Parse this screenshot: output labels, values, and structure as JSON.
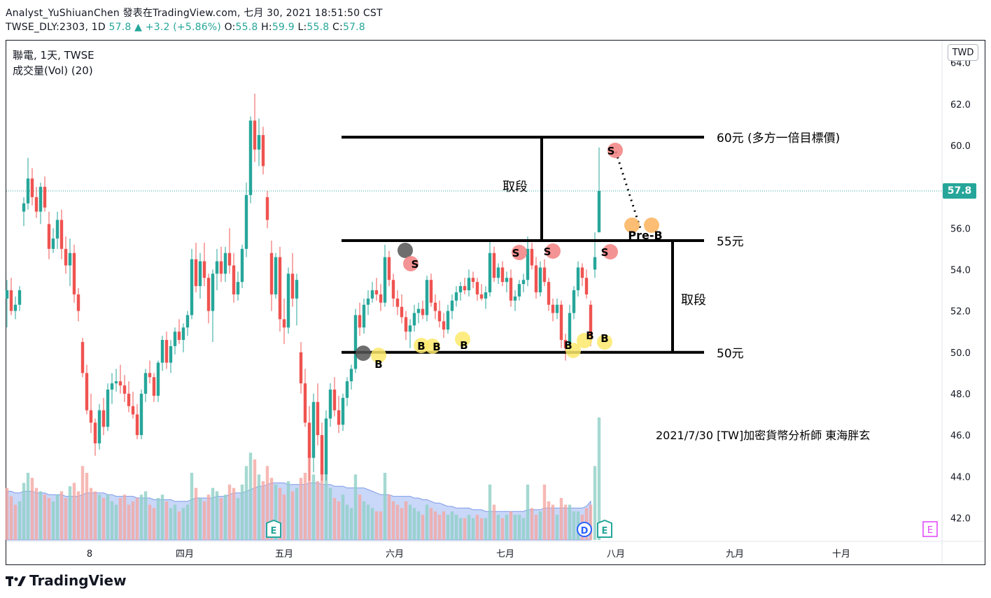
{
  "header": {
    "publish_line": "Analyst_YuShiuanChen 發表在TradingView.com, 七月 30, 2021 18:51:50 CST",
    "ticker": "TWSE_DLY:2303, 1D",
    "last": "57.8",
    "change": "+3.2 (+5.86%)",
    "o_label": "O:",
    "o": "55.8",
    "h_label": "H:",
    "h": "59.9",
    "l_label": "L:",
    "l": "55.8",
    "c_label": "C:",
    "c": "57.8"
  },
  "legend": {
    "line1": "聯電, 1天, TWSE",
    "line2": "成交量(Vol) (20)"
  },
  "currency_button": "TWD",
  "price_tag": "57.8",
  "footer": {
    "brand": "TradingView"
  },
  "colors": {
    "up": "#26a69a",
    "down": "#ef5350",
    "vol_up": "#8fcfc6",
    "vol_down": "#f4a7a3",
    "vol_ma_fill": "#b7c9f5",
    "marker_buy": "#fde96b",
    "marker_sell": "#f28080",
    "marker_dark": "#555555",
    "marker_preb": "#fbb35c",
    "event_e": "#26a69a",
    "event_d": "#2962ff",
    "event_e_future": "#e040fb"
  },
  "chart_data": {
    "type": "candlestick",
    "title": "聯電, 1天, TWSE",
    "ylim": [
      41,
      65
    ],
    "yticks": [
      42.0,
      44.0,
      46.0,
      48.0,
      50.0,
      52.0,
      54.0,
      56.0,
      58.0,
      60.0,
      62.0,
      64.0
    ],
    "xticks": [
      "8",
      "四月",
      "五月",
      "六月",
      "七月",
      "八月",
      "九月",
      "十月"
    ],
    "current_price": 57.8,
    "candles": [
      [
        52.6,
        53.5,
        51.2,
        53.0
      ],
      [
        53.0,
        53.6,
        51.8,
        52.0
      ],
      [
        52.0,
        52.7,
        51.6,
        52.3
      ],
      [
        52.3,
        53.2,
        52.0,
        53.0
      ],
      [
        56.8,
        57.5,
        56.1,
        57.2
      ],
      [
        57.2,
        59.4,
        56.9,
        58.4
      ],
      [
        58.4,
        58.9,
        57.1,
        57.5
      ],
      [
        57.5,
        58.0,
        56.5,
        56.8
      ],
      [
        56.8,
        58.2,
        56.2,
        58.0
      ],
      [
        58.0,
        58.5,
        56.8,
        57.0
      ],
      [
        56.2,
        56.8,
        54.5,
        55.0
      ],
      [
        55.0,
        56.0,
        54.8,
        55.5
      ],
      [
        55.5,
        56.8,
        55.0,
        56.4
      ],
      [
        56.4,
        56.9,
        54.5,
        55.0
      ],
      [
        55.0,
        55.6,
        53.8,
        54.2
      ],
      [
        54.2,
        55.5,
        53.2,
        54.8
      ],
      [
        54.8,
        55.2,
        52.4,
        52.8
      ],
      [
        52.8,
        53.1,
        51.5,
        52.0
      ],
      [
        50.5,
        50.7,
        48.8,
        49.0
      ],
      [
        49.0,
        49.4,
        47.0,
        47.2
      ],
      [
        47.2,
        48.0,
        46.1,
        46.6
      ],
      [
        46.6,
        46.8,
        45.0,
        45.6
      ],
      [
        45.6,
        47.5,
        45.3,
        47.2
      ],
      [
        47.2,
        47.8,
        46.0,
        46.4
      ],
      [
        46.4,
        48.5,
        46.2,
        48.2
      ],
      [
        48.2,
        49.0,
        47.5,
        48.5
      ],
      [
        48.5,
        49.2,
        48.1,
        48.6
      ],
      [
        48.6,
        49.4,
        48.0,
        48.4
      ],
      [
        48.4,
        48.9,
        47.6,
        48.0
      ],
      [
        48.0,
        48.6,
        47.1,
        47.4
      ],
      [
        47.4,
        48.1,
        46.8,
        47.0
      ],
      [
        47.0,
        47.5,
        45.8,
        46.0
      ],
      [
        46.0,
        48.2,
        45.8,
        48.0
      ],
      [
        48.0,
        49.2,
        47.6,
        49.0
      ],
      [
        49.0,
        49.6,
        48.5,
        48.8
      ],
      [
        48.8,
        49.0,
        47.6,
        47.9
      ],
      [
        47.9,
        49.6,
        47.6,
        49.5
      ],
      [
        49.5,
        50.8,
        49.1,
        50.6
      ],
      [
        50.6,
        51.0,
        49.2,
        49.5
      ],
      [
        49.5,
        50.6,
        49.0,
        50.3
      ],
      [
        50.3,
        51.2,
        49.9,
        51.0
      ],
      [
        51.0,
        51.6,
        50.4,
        50.6
      ],
      [
        50.6,
        51.4,
        50.0,
        51.2
      ],
      [
        51.2,
        52.0,
        50.8,
        51.8
      ],
      [
        51.8,
        55.0,
        51.6,
        54.5
      ],
      [
        54.5,
        55.3,
        52.9,
        53.2
      ],
      [
        53.2,
        54.8,
        52.6,
        54.4
      ],
      [
        54.4,
        55.3,
        53.2,
        53.6
      ],
      [
        53.6,
        53.8,
        51.4,
        52.0
      ],
      [
        52.0,
        54.0,
        50.5,
        53.8
      ],
      [
        53.8,
        55.0,
        53.0,
        54.4
      ],
      [
        54.4,
        55.1,
        53.4,
        53.8
      ],
      [
        53.8,
        55.1,
        53.4,
        54.8
      ],
      [
        54.8,
        56.0,
        53.8,
        54.2
      ],
      [
        54.2,
        54.8,
        52.4,
        52.8
      ],
      [
        52.8,
        53.9,
        52.5,
        53.4
      ],
      [
        53.4,
        55.2,
        53.1,
        55.0
      ],
      [
        55.0,
        58.2,
        54.6,
        57.6
      ],
      [
        57.6,
        61.4,
        57.2,
        61.2
      ],
      [
        61.2,
        62.5,
        59.2,
        59.8
      ],
      [
        59.8,
        61.3,
        59.0,
        60.5
      ],
      [
        60.5,
        60.9,
        58.6,
        59.0
      ],
      [
        57.5,
        57.8,
        56.0,
        56.4
      ],
      [
        54.8,
        55.4,
        52.0,
        52.8
      ],
      [
        52.8,
        54.8,
        52.6,
        54.6
      ],
      [
        54.6,
        55.1,
        51.0,
        51.6
      ],
      [
        51.6,
        52.6,
        50.4,
        51.2
      ],
      [
        51.2,
        54.1,
        50.9,
        53.8
      ],
      [
        53.8,
        54.8,
        52.2,
        52.6
      ],
      [
        52.6,
        53.8,
        51.3,
        53.5
      ],
      [
        50.0,
        50.5,
        48.0,
        48.5
      ],
      [
        48.5,
        49.2,
        46.4,
        46.6
      ],
      [
        46.6,
        47.4,
        43.8,
        44.9
      ],
      [
        44.9,
        48.0,
        44.2,
        47.6
      ],
      [
        47.6,
        48.5,
        45.5,
        46.0
      ],
      [
        46.0,
        46.6,
        43.8,
        44.1
      ],
      [
        44.1,
        47.2,
        43.8,
        46.8
      ],
      [
        46.8,
        48.5,
        46.4,
        48.2
      ],
      [
        48.2,
        48.8,
        46.9,
        47.2
      ],
      [
        47.2,
        47.9,
        46.1,
        46.5
      ],
      [
        46.5,
        48.0,
        46.2,
        47.8
      ],
      [
        47.8,
        48.8,
        47.4,
        48.6
      ],
      [
        48.6,
        49.4,
        48.2,
        49.2
      ],
      [
        49.2,
        52.1,
        49.0,
        51.8
      ],
      [
        51.8,
        52.4,
        50.8,
        51.2
      ],
      [
        51.2,
        52.6,
        50.9,
        52.3
      ],
      [
        52.3,
        53.0,
        51.8,
        52.6
      ],
      [
        52.6,
        53.4,
        52.4,
        53.0
      ],
      [
        53.0,
        53.6,
        52.5,
        52.8
      ],
      [
        52.8,
        53.3,
        52.0,
        52.4
      ],
      [
        52.4,
        55.2,
        52.2,
        54.6
      ],
      [
        54.6,
        54.9,
        53.2,
        53.5
      ],
      [
        53.5,
        53.8,
        52.2,
        52.6
      ],
      [
        52.6,
        53.0,
        51.8,
        52.2
      ],
      [
        52.2,
        52.8,
        51.4,
        51.7
      ],
      [
        51.7,
        52.0,
        50.6,
        51.0
      ],
      [
        51.0,
        51.6,
        50.2,
        51.3
      ],
      [
        51.3,
        52.3,
        51.0,
        51.9
      ],
      [
        51.9,
        52.4,
        51.4,
        52.1
      ],
      [
        52.1,
        52.5,
        51.6,
        51.8
      ],
      [
        51.8,
        53.7,
        51.5,
        53.5
      ],
      [
        53.5,
        53.8,
        52.2,
        52.4
      ],
      [
        52.4,
        52.8,
        51.6,
        52.0
      ],
      [
        52.0,
        52.5,
        51.2,
        51.5
      ],
      [
        51.5,
        51.9,
        50.7,
        51.1
      ],
      [
        51.1,
        52.3,
        50.9,
        52.0
      ],
      [
        52.0,
        52.8,
        51.6,
        52.5
      ],
      [
        52.5,
        53.2,
        52.2,
        52.9
      ],
      [
        52.9,
        53.4,
        52.5,
        53.2
      ],
      [
        53.2,
        53.6,
        52.8,
        53.0
      ],
      [
        53.0,
        54.0,
        52.7,
        53.6
      ],
      [
        53.6,
        53.9,
        53.1,
        53.4
      ],
      [
        53.4,
        53.6,
        52.5,
        52.8
      ],
      [
        52.8,
        53.3,
        52.5,
        52.6
      ],
      [
        52.6,
        53.2,
        52.1,
        52.9
      ],
      [
        52.9,
        55.4,
        52.7,
        54.8
      ],
      [
        54.8,
        55.1,
        53.4,
        53.6
      ],
      [
        53.6,
        54.3,
        53.3,
        54.1
      ],
      [
        54.1,
        54.4,
        53.2,
        53.4
      ],
      [
        53.4,
        53.9,
        52.9,
        53.6
      ],
      [
        53.6,
        54.0,
        52.2,
        52.5
      ],
      [
        52.5,
        53.0,
        52.0,
        52.7
      ],
      [
        52.7,
        53.5,
        52.5,
        53.3
      ],
      [
        53.3,
        53.8,
        52.9,
        53.5
      ],
      [
        53.5,
        55.6,
        53.2,
        55.0
      ],
      [
        55.0,
        55.3,
        54.0,
        54.2
      ],
      [
        54.2,
        54.6,
        52.6,
        52.9
      ],
      [
        52.9,
        54.4,
        52.7,
        54.1
      ],
      [
        54.1,
        54.5,
        53.2,
        53.4
      ],
      [
        53.4,
        53.6,
        52.0,
        52.3
      ],
      [
        52.3,
        52.6,
        51.5,
        51.9
      ],
      [
        51.9,
        52.6,
        51.6,
        52.3
      ],
      [
        52.3,
        52.5,
        50.2,
        50.6
      ],
      [
        50.6,
        50.9,
        49.6,
        50.2
      ],
      [
        50.2,
        52.3,
        49.9,
        51.9
      ],
      [
        51.9,
        53.2,
        51.6,
        53.0
      ],
      [
        53.0,
        54.4,
        52.7,
        54.1
      ],
      [
        54.1,
        54.3,
        53.2,
        53.6
      ],
      [
        53.6,
        54.0,
        52.6,
        52.8
      ],
      [
        52.3,
        52.5,
        50.3,
        50.6
      ],
      [
        54.0,
        55.8,
        53.6,
        54.6
      ],
      [
        55.8,
        59.9,
        55.8,
        57.8
      ]
    ],
    "volume": [
      [
        3.1,
        "d"
      ],
      [
        2.6,
        "d"
      ],
      [
        2.1,
        "d"
      ],
      [
        2.3,
        "u"
      ],
      [
        3.4,
        "u"
      ],
      [
        4.0,
        "u"
      ],
      [
        3.7,
        "d"
      ],
      [
        3.1,
        "d"
      ],
      [
        2.9,
        "u"
      ],
      [
        2.7,
        "d"
      ],
      [
        2.5,
        "d"
      ],
      [
        2.3,
        "u"
      ],
      [
        2.7,
        "u"
      ],
      [
        2.9,
        "d"
      ],
      [
        2.5,
        "d"
      ],
      [
        3.2,
        "u"
      ],
      [
        3.4,
        "d"
      ],
      [
        2.9,
        "d"
      ],
      [
        4.4,
        "d"
      ],
      [
        4.0,
        "d"
      ],
      [
        3.1,
        "d"
      ],
      [
        2.9,
        "d"
      ],
      [
        2.7,
        "u"
      ],
      [
        2.5,
        "d"
      ],
      [
        2.7,
        "u"
      ],
      [
        2.3,
        "u"
      ],
      [
        2.1,
        "u"
      ],
      [
        2.5,
        "d"
      ],
      [
        2.7,
        "d"
      ],
      [
        2.1,
        "d"
      ],
      [
        2.3,
        "d"
      ],
      [
        2.5,
        "d"
      ],
      [
        2.7,
        "u"
      ],
      [
        2.9,
        "u"
      ],
      [
        2.1,
        "d"
      ],
      [
        1.9,
        "d"
      ],
      [
        2.5,
        "u"
      ],
      [
        2.7,
        "u"
      ],
      [
        2.3,
        "d"
      ],
      [
        1.9,
        "u"
      ],
      [
        2.1,
        "u"
      ],
      [
        1.7,
        "d"
      ],
      [
        1.9,
        "u"
      ],
      [
        2.1,
        "u"
      ],
      [
        4.0,
        "u"
      ],
      [
        3.1,
        "d"
      ],
      [
        2.5,
        "u"
      ],
      [
        2.3,
        "d"
      ],
      [
        2.7,
        "d"
      ],
      [
        3.1,
        "u"
      ],
      [
        2.9,
        "u"
      ],
      [
        2.5,
        "d"
      ],
      [
        2.7,
        "u"
      ],
      [
        3.3,
        "d"
      ],
      [
        3.1,
        "d"
      ],
      [
        2.5,
        "u"
      ],
      [
        3.3,
        "u"
      ],
      [
        4.4,
        "u"
      ],
      [
        5.2,
        "u"
      ],
      [
        4.8,
        "d"
      ],
      [
        3.9,
        "u"
      ],
      [
        3.5,
        "d"
      ],
      [
        4.4,
        "d"
      ],
      [
        3.7,
        "d"
      ],
      [
        3.3,
        "u"
      ],
      [
        3.1,
        "d"
      ],
      [
        2.7,
        "d"
      ],
      [
        3.5,
        "u"
      ],
      [
        2.9,
        "d"
      ],
      [
        3.1,
        "u"
      ],
      [
        3.7,
        "d"
      ],
      [
        4.0,
        "d"
      ],
      [
        5.2,
        "d"
      ],
      [
        3.9,
        "u"
      ],
      [
        3.5,
        "d"
      ],
      [
        4.2,
        "d"
      ],
      [
        3.9,
        "u"
      ],
      [
        3.1,
        "u"
      ],
      [
        2.5,
        "d"
      ],
      [
        2.3,
        "d"
      ],
      [
        2.7,
        "u"
      ],
      [
        2.1,
        "u"
      ],
      [
        1.9,
        "u"
      ],
      [
        3.9,
        "u"
      ],
      [
        2.7,
        "d"
      ],
      [
        2.3,
        "u"
      ],
      [
        2.1,
        "u"
      ],
      [
        1.9,
        "u"
      ],
      [
        1.7,
        "d"
      ],
      [
        1.7,
        "d"
      ],
      [
        4.0,
        "u"
      ],
      [
        2.7,
        "d"
      ],
      [
        2.3,
        "d"
      ],
      [
        2.1,
        "d"
      ],
      [
        1.9,
        "d"
      ],
      [
        2.3,
        "d"
      ],
      [
        2.1,
        "u"
      ],
      [
        1.9,
        "u"
      ],
      [
        1.7,
        "u"
      ],
      [
        1.5,
        "d"
      ],
      [
        2.1,
        "u"
      ],
      [
        1.9,
        "d"
      ],
      [
        1.7,
        "d"
      ],
      [
        1.5,
        "d"
      ],
      [
        1.7,
        "d"
      ],
      [
        1.5,
        "u"
      ],
      [
        1.7,
        "u"
      ],
      [
        1.5,
        "u"
      ],
      [
        1.3,
        "u"
      ],
      [
        1.3,
        "d"
      ],
      [
        1.5,
        "u"
      ],
      [
        1.3,
        "u"
      ],
      [
        1.5,
        "d"
      ],
      [
        1.3,
        "d"
      ],
      [
        1.3,
        "u"
      ],
      [
        3.3,
        "u"
      ],
      [
        2.1,
        "d"
      ],
      [
        1.5,
        "u"
      ],
      [
        1.3,
        "d"
      ],
      [
        1.5,
        "u"
      ],
      [
        1.7,
        "d"
      ],
      [
        1.5,
        "u"
      ],
      [
        1.5,
        "u"
      ],
      [
        1.3,
        "u"
      ],
      [
        3.3,
        "u"
      ],
      [
        1.9,
        "d"
      ],
      [
        1.5,
        "d"
      ],
      [
        1.7,
        "u"
      ],
      [
        3.3,
        "d"
      ],
      [
        2.3,
        "d"
      ],
      [
        2.1,
        "d"
      ],
      [
        1.5,
        "u"
      ],
      [
        2.5,
        "d"
      ],
      [
        2.1,
        "d"
      ],
      [
        2.1,
        "u"
      ],
      [
        1.7,
        "u"
      ],
      [
        1.7,
        "u"
      ],
      [
        1.5,
        "d"
      ],
      [
        1.9,
        "d"
      ],
      [
        2.1,
        "d"
      ],
      [
        4.4,
        "u"
      ],
      [
        7.3,
        "u"
      ]
    ],
    "volume_ma_relative": [
      2.9,
      2.9,
      2.8,
      2.8,
      2.9,
      2.9,
      2.9,
      2.8,
      2.8,
      2.8,
      2.7,
      2.7,
      2.7,
      2.7,
      2.6,
      2.6,
      2.6,
      2.6,
      2.7,
      2.8,
      2.8,
      2.8,
      2.8,
      2.8,
      2.7,
      2.7,
      2.6,
      2.6,
      2.6,
      2.6,
      2.6,
      2.5,
      2.5,
      2.5,
      2.5,
      2.4,
      2.4,
      2.4,
      2.4,
      2.4,
      2.3,
      2.3,
      2.3,
      2.3,
      2.4,
      2.5,
      2.5,
      2.5,
      2.5,
      2.5,
      2.6,
      2.6,
      2.6,
      2.7,
      2.8,
      2.8,
      2.8,
      2.9,
      3.0,
      3.1,
      3.2,
      3.2,
      3.3,
      3.4,
      3.4,
      3.4,
      3.4,
      3.3,
      3.3,
      3.3,
      3.3,
      3.3,
      3.4,
      3.4,
      3.4,
      3.3,
      3.3,
      3.3,
      3.2,
      3.2,
      3.2,
      3.1,
      3.1,
      3.1,
      3.1,
      3.1,
      3.0,
      2.9,
      2.8,
      2.7,
      2.7,
      2.7,
      2.6,
      2.6,
      2.6,
      2.6,
      2.6,
      2.5,
      2.5,
      2.4,
      2.4,
      2.3,
      2.2,
      2.2,
      2.1,
      2.0,
      2.0,
      1.9,
      1.9,
      1.9,
      1.9,
      1.8,
      1.8,
      1.8,
      1.7,
      1.7,
      1.7,
      1.7,
      1.7,
      1.7,
      1.7,
      1.7,
      1.7,
      1.7,
      1.8,
      1.8,
      1.8,
      1.8,
      1.9,
      1.9,
      1.9,
      1.9,
      1.9,
      1.9,
      1.9,
      1.9,
      1.9,
      1.9,
      2.0,
      2.3
    ],
    "annotations": {
      "levels": [
        {
          "price": 60.4,
          "label": "60元 (多方一倍目標價)"
        },
        {
          "price": 55.4,
          "label": "55元"
        },
        {
          "price": 50.0,
          "label": "50元"
        }
      ],
      "range_label": "取段",
      "watermark": "2021/7/30 [TW]加密貨幣分析師 東海胖玄",
      "buy_label": "B",
      "sell_label": "S",
      "preb_label": "Pre-B",
      "event_e": "E",
      "event_d": "D"
    }
  }
}
